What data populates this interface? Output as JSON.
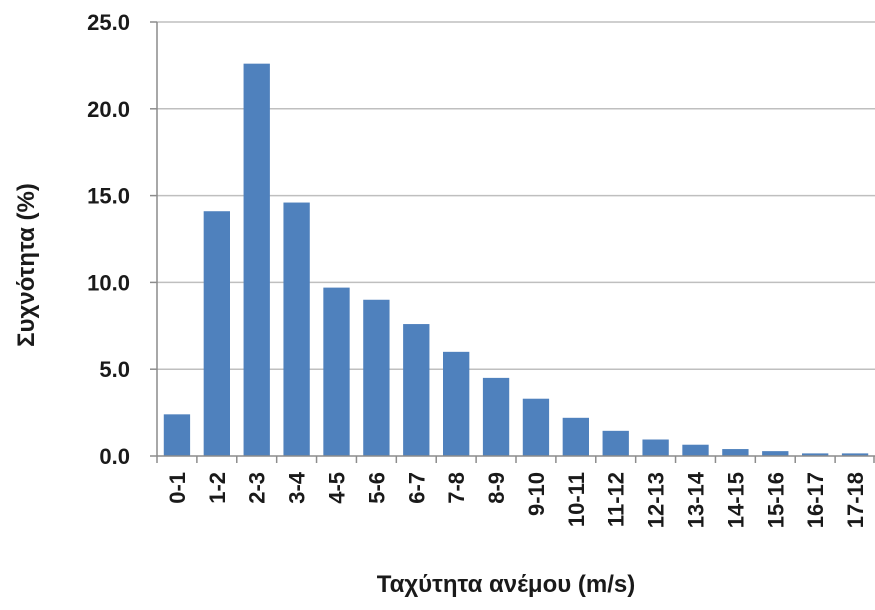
{
  "chart_data": {
    "type": "bar",
    "title": "",
    "xlabel": "Ταχύτητα ανέμου (m/s)",
    "ylabel": "Συχνότητα (%)",
    "categories": [
      "0-1",
      "1-2",
      "2-3",
      "3-4",
      "4-5",
      "5-6",
      "6-7",
      "7-8",
      "8-9",
      "9-10",
      "10-11",
      "11-12",
      "12-13",
      "13-14",
      "14-15",
      "15-16",
      "16-17",
      "17-18"
    ],
    "values": [
      2.4,
      14.1,
      22.6,
      14.6,
      9.7,
      9.0,
      7.6,
      6.0,
      4.5,
      3.3,
      2.2,
      1.45,
      0.95,
      0.65,
      0.4,
      0.28,
      0.15,
      0.15
    ],
    "y_ticks": [
      "0.0",
      "5.0",
      "10.0",
      "15.0",
      "20.0",
      "25.0"
    ],
    "ylim": [
      0,
      25
    ],
    "grid": true,
    "legend": "none",
    "bar_color": "#4f81bd",
    "grid_color": "#bfbfbf"
  }
}
